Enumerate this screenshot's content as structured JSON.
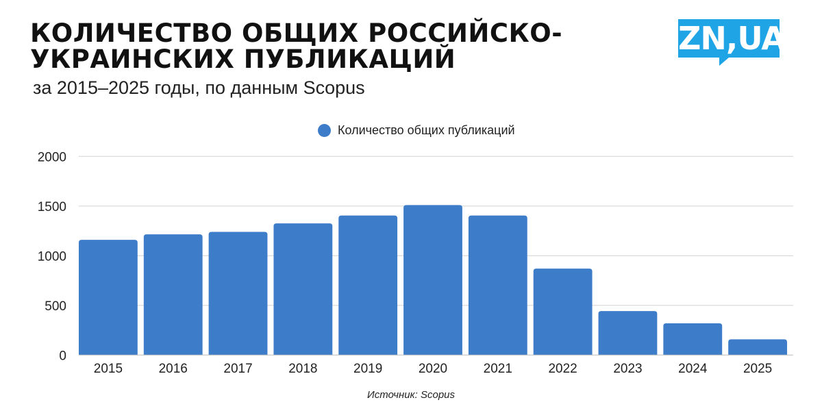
{
  "header": {
    "title": "КОЛИЧЕСТВО ОБЩИХ РОССИЙСКО-УКРАИНСКИХ ПУБЛИКАЦИЙ",
    "subtitle": "за 2015–2025 годы, по данным Scopus",
    "logo": "ZN,UA"
  },
  "footer": {
    "source": "Источник: Scopus"
  },
  "colors": {
    "bar": "#3d7cc9",
    "logo": "#1fa5e6"
  },
  "chart_data": {
    "type": "bar",
    "title": "КОЛИЧЕСТВО ОБЩИХ РОССИЙСКО-УКРАИНСКИХ ПУБЛИКАЦИЙ",
    "subtitle": "за 2015–2025 годы, по данным Scopus",
    "categories": [
      "2015",
      "2016",
      "2017",
      "2018",
      "2019",
      "2020",
      "2021",
      "2022",
      "2023",
      "2024",
      "2025"
    ],
    "series": [
      {
        "name": "Количество общих публикаций",
        "values": [
          1160,
          1215,
          1240,
          1325,
          1405,
          1510,
          1405,
          870,
          443,
          319,
          158
        ]
      }
    ],
    "yticks": [
      "0",
      "500",
      "1000",
      "1500",
      "2000"
    ],
    "ylim": [
      0,
      2000
    ],
    "grid": true,
    "legend": "top-center"
  }
}
